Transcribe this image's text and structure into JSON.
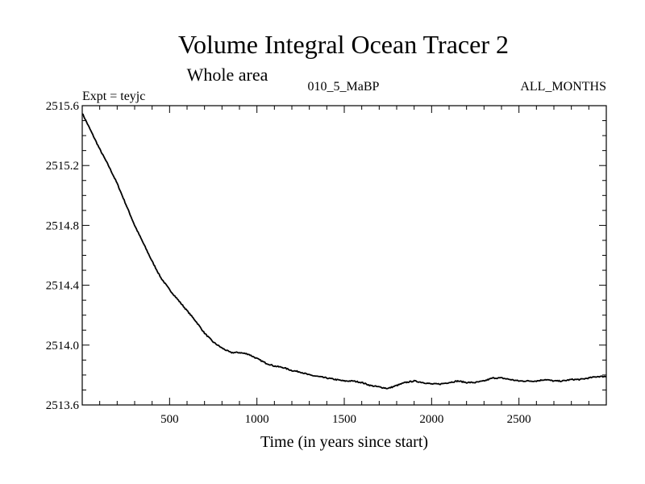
{
  "chart_data": {
    "type": "line",
    "title": "Volume Integral Ocean Tracer 2",
    "subtitle": "Whole area",
    "experiment_label": "Expt = teyjc",
    "run_label": "010_5_MaBP",
    "period_label": "ALL_MONTHS",
    "xlabel": "Time (in years since start)",
    "ylabel": "",
    "xlim": [
      0,
      3000
    ],
    "ylim": [
      2513.6,
      2515.6
    ],
    "x_ticks": [
      500,
      1000,
      1500,
      2000,
      2500
    ],
    "x_tick_labels": [
      "500",
      "1000",
      "1500",
      "2000",
      "2500"
    ],
    "y_ticks": [
      2513.6,
      2514.0,
      2514.4,
      2514.8,
      2515.2,
      2515.6
    ],
    "y_tick_labels": [
      "2513.6",
      "2514.0",
      "2514.4",
      "2514.8",
      "2515.2",
      "2515.6"
    ],
    "grid": false,
    "series": [
      {
        "name": "Tracer 2",
        "color": "#000000",
        "x": [
          0,
          50,
          100,
          150,
          200,
          250,
          300,
          350,
          400,
          450,
          500,
          550,
          600,
          650,
          700,
          750,
          800,
          850,
          900,
          950,
          1000,
          1050,
          1100,
          1150,
          1200,
          1250,
          1300,
          1350,
          1400,
          1450,
          1500,
          1550,
          1600,
          1650,
          1700,
          1750,
          1800,
          1850,
          1900,
          1950,
          2000,
          2050,
          2100,
          2150,
          2200,
          2250,
          2300,
          2350,
          2400,
          2450,
          2500,
          2550,
          2600,
          2650,
          2700,
          2750,
          2800,
          2850,
          2900,
          2950,
          3000
        ],
        "values": [
          2515.55,
          2515.43,
          2515.31,
          2515.2,
          2515.08,
          2514.94,
          2514.8,
          2514.68,
          2514.56,
          2514.45,
          2514.37,
          2514.3,
          2514.23,
          2514.16,
          2514.08,
          2514.02,
          2513.98,
          2513.95,
          2513.95,
          2513.94,
          2513.91,
          2513.88,
          2513.86,
          2513.85,
          2513.83,
          2513.82,
          2513.8,
          2513.79,
          2513.78,
          2513.77,
          2513.76,
          2513.76,
          2513.75,
          2513.73,
          2513.72,
          2513.71,
          2513.73,
          2513.75,
          2513.76,
          2513.75,
          2513.74,
          2513.74,
          2513.75,
          2513.76,
          2513.75,
          2513.75,
          2513.76,
          2513.78,
          2513.78,
          2513.77,
          2513.76,
          2513.76,
          2513.76,
          2513.77,
          2513.76,
          2513.76,
          2513.77,
          2513.77,
          2513.78,
          2513.79,
          2513.79
        ]
      }
    ]
  }
}
